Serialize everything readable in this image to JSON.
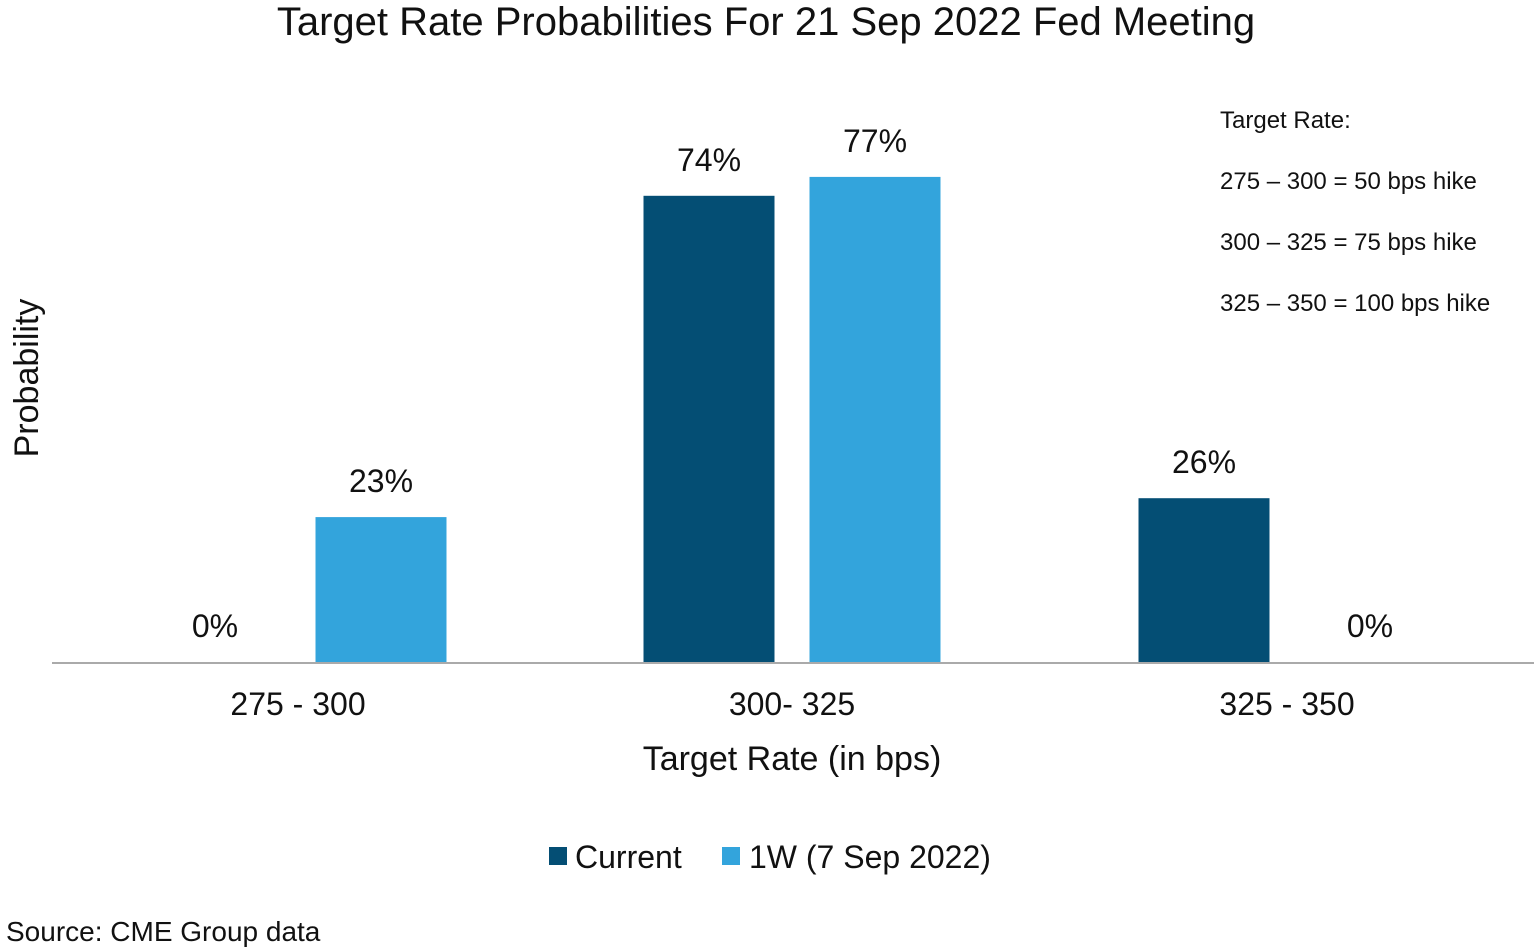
{
  "chart_data": {
    "type": "bar",
    "title": "Target Rate Probabilities For 21 Sep 2022 Fed Meeting",
    "xlabel": "Target Rate (in bps)",
    "ylabel": "Probability",
    "categories": [
      "275 - 300",
      "300- 325",
      "325 - 350"
    ],
    "series": [
      {
        "name": "Current",
        "values": [
          0,
          74,
          26
        ],
        "labels": [
          "0%",
          "74%",
          "26%"
        ],
        "color": "#044E74"
      },
      {
        "name": "1W (7 Sep 2022)",
        "values": [
          23,
          77,
          0
        ],
        "labels": [
          "23%",
          "77%",
          "0%"
        ],
        "color": "#33A4DC"
      }
    ],
    "ylim": [
      0,
      100
    ],
    "grid": false,
    "legend_position": "bottom",
    "annotation": {
      "heading": "Target Rate:",
      "lines": [
        "275 – 300 = 50 bps hike",
        "300 – 325 = 75 bps hike",
        "325 – 350 = 100 bps hike"
      ]
    },
    "source": "Source: CME Group data"
  }
}
